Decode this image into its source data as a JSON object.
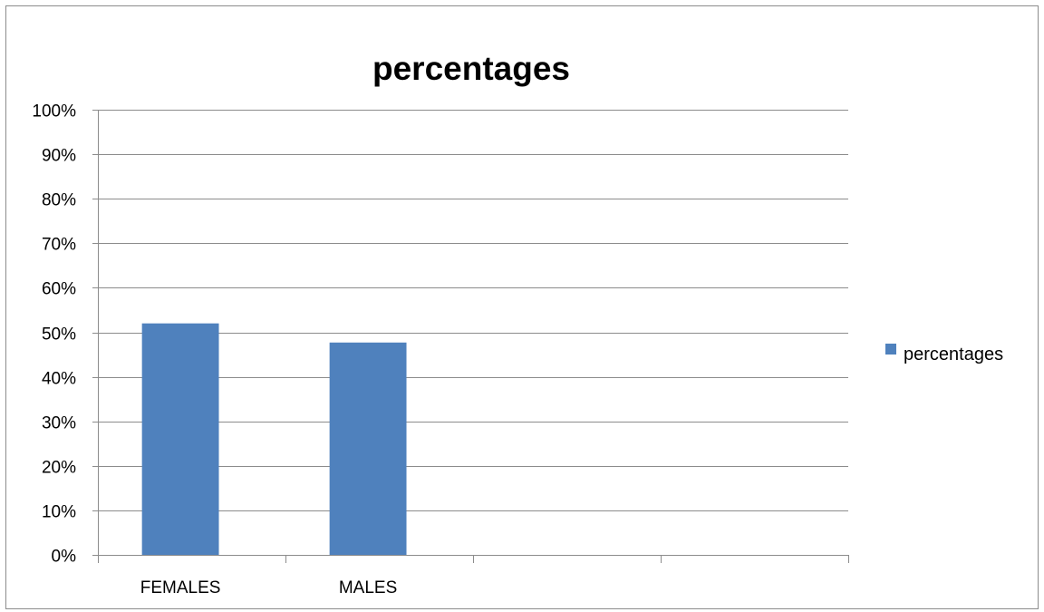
{
  "chart_data": {
    "type": "bar",
    "title": "percentages",
    "categories": [
      "FEMALES",
      "MALES",
      "",
      ""
    ],
    "series": [
      {
        "name": "percentages",
        "values": [
          0.52,
          0.477,
          null,
          null
        ],
        "color": "#4F81BD"
      }
    ],
    "ylim": [
      0,
      1
    ],
    "y_ticks": [
      "0%",
      "10%",
      "20%",
      "30%",
      "40%",
      "50%",
      "60%",
      "70%",
      "80%",
      "90%",
      "100%"
    ],
    "xlabel": "",
    "ylabel": "",
    "grid": true,
    "legend_position": "right"
  }
}
